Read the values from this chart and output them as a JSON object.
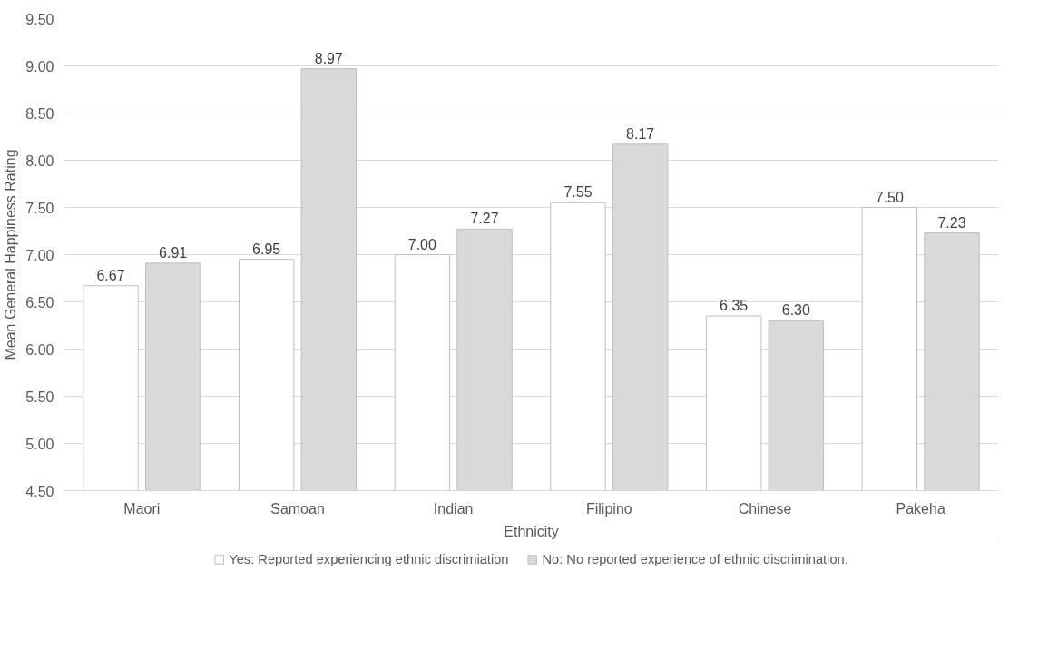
{
  "chart_data": {
    "type": "bar",
    "xlabel": "Ethnicity",
    "ylabel": "Mean General Happiness Rating",
    "categories": [
      "Maori",
      "Samoan",
      "Indian",
      "Filipino",
      "Chinese",
      "Pakeha"
    ],
    "series": [
      {
        "name": "Yes: Reported experiencing ethnic discrimiation",
        "color": "#ffffff",
        "values": [
          6.67,
          6.95,
          7.0,
          7.55,
          6.35,
          7.5
        ],
        "value_labels": [
          "6.67",
          "6.95",
          "7.00",
          "7.55",
          "6.35",
          "7.50"
        ]
      },
      {
        "name": "No: No reported experience of ethnic discrimination.",
        "color": "#d9d9d9",
        "values": [
          6.91,
          8.97,
          7.27,
          8.17,
          6.3,
          7.23
        ],
        "value_labels": [
          "6.91",
          "8.97",
          "7.27",
          "8.17",
          "6.30",
          "7.23"
        ]
      }
    ],
    "ylim": [
      4.5,
      9.5
    ],
    "yticks": [
      {
        "value": 4.5,
        "label": "4.50"
      },
      {
        "value": 5,
        "label": "5.00"
      },
      {
        "value": 5.5,
        "label": "5.50"
      },
      {
        "value": 6,
        "label": "6.00"
      },
      {
        "value": 6.5,
        "label": "6.50"
      },
      {
        "value": 7,
        "label": "7.00"
      },
      {
        "value": 7.5,
        "label": "7.50"
      },
      {
        "value": 8,
        "label": "8.00"
      },
      {
        "value": 8.5,
        "label": "8.50"
      },
      {
        "value": 9,
        "label": "9.00"
      },
      {
        "value": 9.5,
        "label": "9.50"
      }
    ],
    "grid": "y",
    "legend": "bottom"
  }
}
